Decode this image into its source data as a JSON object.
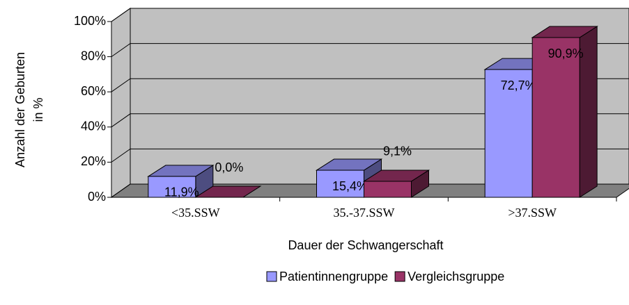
{
  "chart_data": {
    "type": "bar3d",
    "categories": [
      "<35.SSW",
      "35.-37.SSW",
      ">37.SSW"
    ],
    "series": [
      {
        "name": "Patientinnengruppe",
        "color": "#9999ff",
        "values": [
          11.9,
          15.4,
          72.7
        ],
        "value_labels": [
          "11,9%",
          "15,4%",
          "72,7%"
        ]
      },
      {
        "name": "Vergleichsgruppe",
        "color": "#993366",
        "values": [
          0,
          9.1,
          90.9
        ],
        "value_labels": [
          "0,0%",
          "9,1%",
          "90,9%"
        ]
      }
    ],
    "ylim": [
      0,
      100
    ],
    "yticks": [
      {
        "value": 0,
        "label": "0%"
      },
      {
        "value": 20,
        "label": "20%"
      },
      {
        "value": 40,
        "label": "40%"
      },
      {
        "value": 60,
        "label": "60%"
      },
      {
        "value": 80,
        "label": "80%"
      },
      {
        "value": 100,
        "label": "100%"
      }
    ],
    "ylabel": [
      "Anzahl der Geburten",
      "in %"
    ],
    "xlabel": "Dauer der Schwangerschaft",
    "grid": true,
    "legend": "bottom"
  }
}
